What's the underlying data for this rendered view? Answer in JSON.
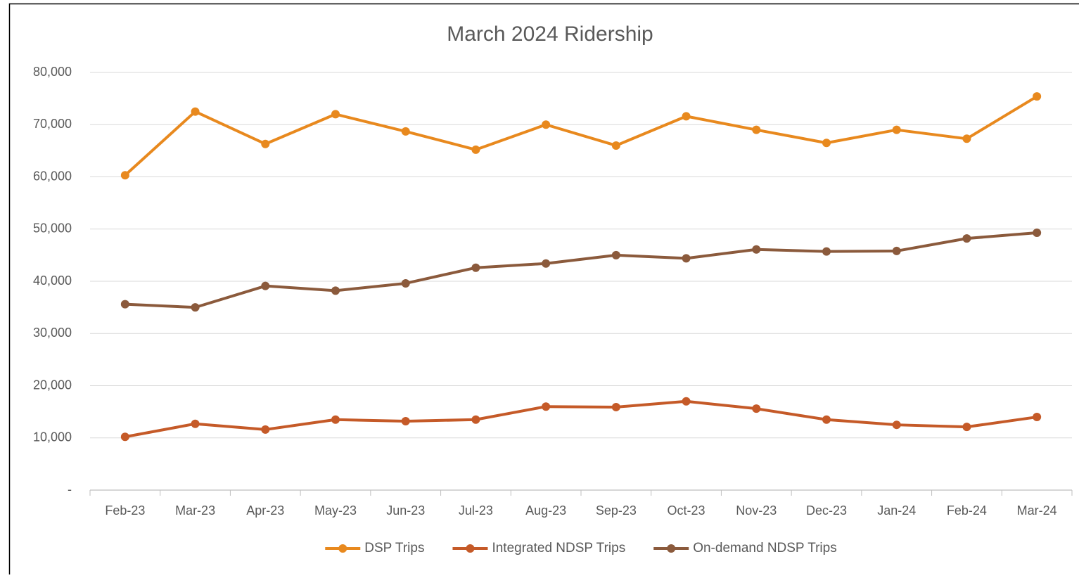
{
  "chart_data": {
    "type": "line",
    "title": "March 2024 Ridership",
    "categories": [
      "Feb-23",
      "Mar-23",
      "Apr-23",
      "May-23",
      "Jun-23",
      "Jul-23",
      "Aug-23",
      "Sep-23",
      "Oct-23",
      "Nov-23",
      "Dec-23",
      "Jan-24",
      "Feb-24",
      "Mar-24"
    ],
    "series": [
      {
        "name": "DSP Trips",
        "color": "#E8891E",
        "values": [
          60300,
          72500,
          66300,
          72000,
          68700,
          65200,
          70000,
          66000,
          71600,
          69000,
          66500,
          69000,
          67300,
          75400
        ]
      },
      {
        "name": "Integrated NDSP Trips",
        "color": "#C55A28",
        "values": [
          10200,
          12700,
          11600,
          13500,
          13200,
          13500,
          16000,
          15900,
          17000,
          15600,
          13500,
          12500,
          12100,
          14000
        ]
      },
      {
        "name": "On-demand NDSP Trips",
        "color": "#8B5A3C",
        "values": [
          35600,
          35000,
          39100,
          38200,
          39600,
          42600,
          43400,
          45000,
          44400,
          46100,
          45700,
          45800,
          48200,
          49300
        ]
      }
    ],
    "ylim": [
      0,
      80000
    ],
    "yticks": [
      {
        "value": 0,
        "label": "-"
      },
      {
        "value": 10000,
        "label": "10,000"
      },
      {
        "value": 20000,
        "label": "20,000"
      },
      {
        "value": 30000,
        "label": "30,000"
      },
      {
        "value": 40000,
        "label": "40,000"
      },
      {
        "value": 50000,
        "label": "50,000"
      },
      {
        "value": 60000,
        "label": "60,000"
      },
      {
        "value": 70000,
        "label": "70,000"
      },
      {
        "value": 80000,
        "label": "80,000"
      }
    ],
    "grid": true,
    "legend": "bottom"
  }
}
